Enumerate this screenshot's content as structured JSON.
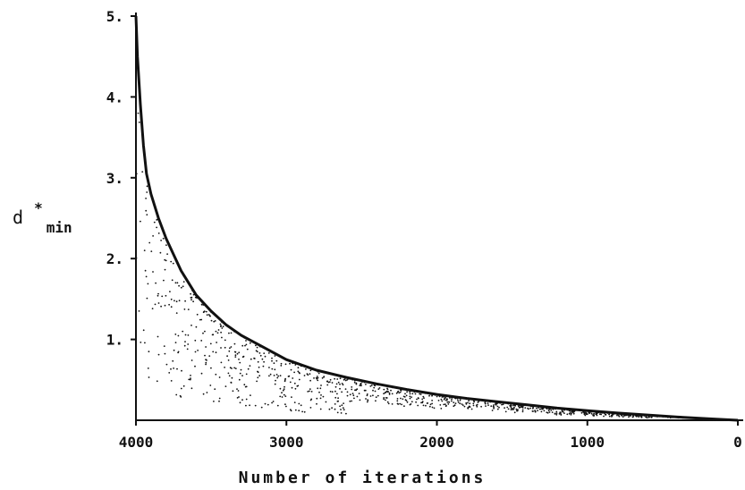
{
  "chart_data": {
    "type": "scatter",
    "title": "",
    "xlabel": "Number of iterations",
    "ylabel": {
      "base": "d",
      "superscript": "*",
      "subscript": "min"
    },
    "xlim": [
      4000,
      0
    ],
    "ylim": [
      0,
      5
    ],
    "x_reversed": true,
    "x_ticks": [
      4000,
      3000,
      2000,
      1000,
      0
    ],
    "x_tick_labels": [
      "4000",
      "3000",
      "2000",
      "1000",
      "0"
    ],
    "y_ticks": [
      1,
      2,
      3,
      4,
      5
    ],
    "y_tick_labels": [
      "1.",
      "2.",
      "3.",
      "4.",
      "5."
    ],
    "grid": false,
    "legend": "none",
    "color": "#111111",
    "envelope": {
      "description_units": "iterations vs d*min",
      "x": [
        4000,
        3990,
        3970,
        3950,
        3930,
        3900,
        3850,
        3800,
        3750,
        3700,
        3600,
        3500,
        3400,
        3300,
        3200,
        3000,
        2800,
        2600,
        2400,
        2200,
        2000,
        1800,
        1600,
        1400,
        1200,
        1000,
        800,
        600,
        400,
        200,
        0
      ],
      "y": [
        5.0,
        4.5,
        3.9,
        3.4,
        3.05,
        2.8,
        2.5,
        2.25,
        2.05,
        1.85,
        1.55,
        1.35,
        1.18,
        1.05,
        0.95,
        0.75,
        0.62,
        0.53,
        0.45,
        0.38,
        0.32,
        0.27,
        0.23,
        0.19,
        0.15,
        0.12,
        0.09,
        0.065,
        0.04,
        0.02,
        0.0
      ]
    },
    "scatter_points": 1400
  }
}
